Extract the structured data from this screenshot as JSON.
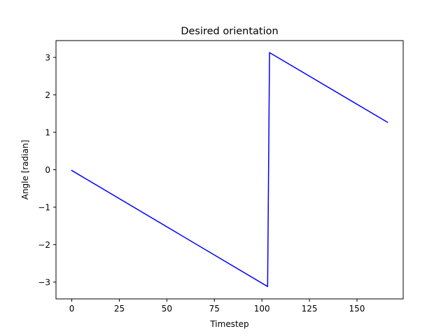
{
  "chart_data": {
    "type": "line",
    "title": "Desired orientation",
    "xlabel": "Timestep",
    "ylabel": "Angle [radian]",
    "xlim": [
      -8.3,
      174.3
    ],
    "ylim": [
      -3.45,
      3.45
    ],
    "xticks": [
      0,
      25,
      50,
      75,
      100,
      125,
      150
    ],
    "xtick_labels": [
      "0",
      "25",
      "50",
      "75",
      "100",
      "125",
      "150"
    ],
    "yticks": [
      -3,
      -2,
      -1,
      0,
      1,
      2,
      3
    ],
    "ytick_labels": [
      "−3",
      "−2",
      "−1",
      "0",
      "1",
      "2",
      "3"
    ],
    "grid": false,
    "series": [
      {
        "color": "#0000ff",
        "x": [
          0,
          103,
          104,
          166
        ],
        "y": [
          -0.02,
          -3.12,
          3.13,
          1.27
        ]
      }
    ]
  }
}
